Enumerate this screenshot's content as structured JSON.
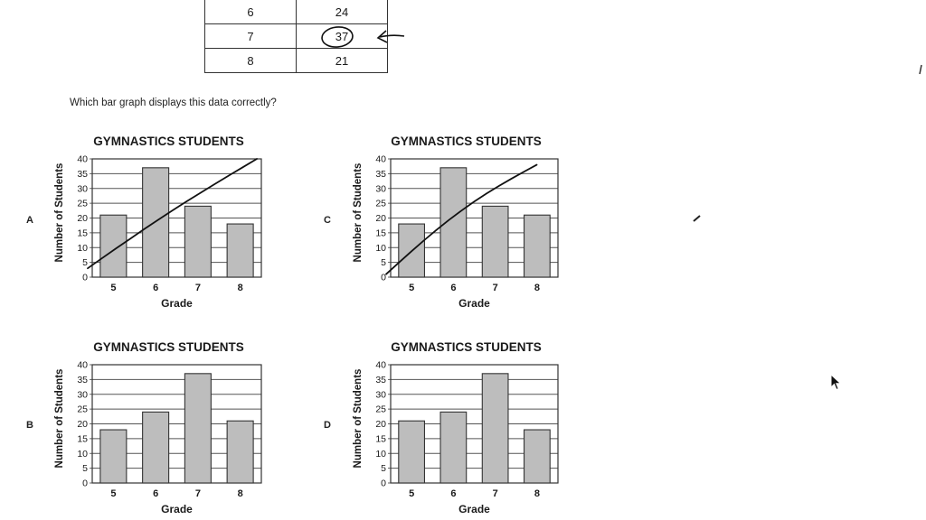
{
  "table": {
    "rows": [
      {
        "grade": "6",
        "students": "24"
      },
      {
        "grade": "7",
        "students": "37"
      },
      {
        "grade": "8",
        "students": "21"
      }
    ]
  },
  "question": "Which bar graph displays this data correctly?",
  "options": [
    "A",
    "C",
    "B",
    "D"
  ],
  "chart_data": [
    {
      "option": "A",
      "type": "bar",
      "title": "GYMNASTICS STUDENTS",
      "xlabel": "Grade",
      "ylabel": "Number of Students",
      "categories": [
        "5",
        "6",
        "7",
        "8"
      ],
      "values": [
        21,
        37,
        24,
        18
      ],
      "ylim": [
        0,
        40
      ],
      "yticks": [
        "0",
        "5",
        "10",
        "15",
        "20",
        "25",
        "30",
        "35",
        "40"
      ],
      "grid": true,
      "annotation_line": [
        [
          0,
          3
        ],
        [
          40,
          40
        ]
      ]
    },
    {
      "option": "C",
      "type": "bar",
      "title": "GYMNASTICS STUDENTS",
      "xlabel": "Grade",
      "ylabel": "Number of Students",
      "categories": [
        "5",
        "6",
        "7",
        "8"
      ],
      "values": [
        18,
        37,
        24,
        21
      ],
      "ylim": [
        0,
        40
      ],
      "yticks": [
        "0",
        "5",
        "10",
        "15",
        "20",
        "25",
        "30",
        "35",
        "40"
      ],
      "grid": true,
      "annotation_line": [
        [
          0,
          1
        ],
        [
          36,
          38
        ]
      ]
    },
    {
      "option": "B",
      "type": "bar",
      "title": "GYMNASTICS STUDENTS",
      "xlabel": "Grade",
      "ylabel": "Number of Students",
      "categories": [
        "5",
        "6",
        "7",
        "8"
      ],
      "values": [
        18,
        24,
        37,
        21
      ],
      "ylim": [
        0,
        40
      ],
      "yticks": [
        "0",
        "5",
        "10",
        "15",
        "20",
        "25",
        "30",
        "35",
        "40"
      ],
      "grid": true
    },
    {
      "option": "D",
      "type": "bar",
      "title": "GYMNASTICS STUDENTS",
      "xlabel": "Grade",
      "ylabel": "Number of Students",
      "categories": [
        "5",
        "6",
        "7",
        "8"
      ],
      "values": [
        21,
        24,
        37,
        18
      ],
      "ylim": [
        0,
        40
      ],
      "yticks": [
        "0",
        "5",
        "10",
        "15",
        "20",
        "25",
        "30",
        "35",
        "40"
      ],
      "grid": true
    }
  ],
  "colors": {
    "bar_fill": "#bdbdbd",
    "bar_stroke": "#333333",
    "grid": "#555555",
    "ink": "#1a1a1a"
  },
  "icons": [
    "arrow-cursor-icon"
  ]
}
